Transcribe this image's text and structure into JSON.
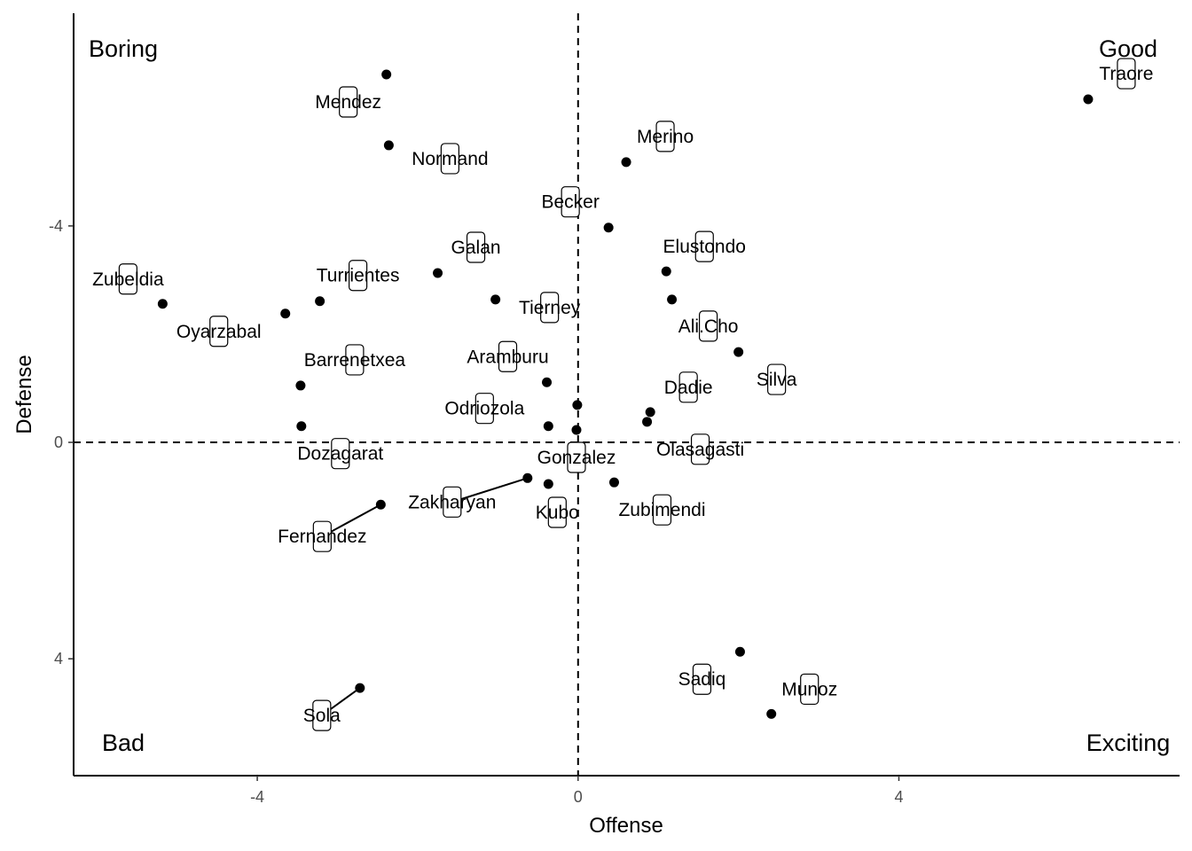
{
  "chart_data": {
    "type": "scatter",
    "xlabel": "Offense",
    "ylabel": "Defense",
    "xlim": [
      -6.29,
      7.5
    ],
    "ylim": [
      -7.93,
      6.16
    ],
    "y_reversed": true,
    "x_ticks": [
      -4,
      0,
      4
    ],
    "y_ticks": [
      -4,
      0,
      4
    ],
    "x_tick_labels": [
      "-4",
      "0",
      "4"
    ],
    "y_tick_labels": [
      "-4",
      "0",
      "4"
    ],
    "grid": false,
    "reference_lines": {
      "x": 0,
      "y": 0,
      "style": "dashed"
    },
    "quadrant_labels": {
      "top_left": "Boring",
      "top_right": "Good",
      "bottom_left": "Bad",
      "bottom_right": "Exciting"
    },
    "points": [
      {
        "name": "Mendez",
        "x": -2.39,
        "y": -6.8
      },
      {
        "name": "Normand",
        "x": -2.36,
        "y": -5.49
      },
      {
        "name": "Merino",
        "x": 0.6,
        "y": -5.18
      },
      {
        "name": "Traore",
        "x": 6.36,
        "y": -6.34
      },
      {
        "name": "Becker",
        "x": 0.38,
        "y": -3.97
      },
      {
        "name": "Galan",
        "x": -1.75,
        "y": -3.13
      },
      {
        "name": "Elustondo",
        "x": 1.1,
        "y": -3.16
      },
      {
        "name": "Tierney",
        "x": -1.03,
        "y": -2.64
      },
      {
        "name": "Ali.Cho",
        "x": 1.17,
        "y": -2.64
      },
      {
        "name": "Turrientes",
        "x": -3.22,
        "y": -2.61
      },
      {
        "name": "Zubeldia",
        "x": -5.18,
        "y": -2.56
      },
      {
        "name": "Oyarzabal",
        "x": -3.65,
        "y": -2.38
      },
      {
        "name": "Silva",
        "x": 2.0,
        "y": -1.67
      },
      {
        "name": "Barrenetxea",
        "x": -3.46,
        "y": -1.05
      },
      {
        "name": "Aramburu",
        "x": -0.39,
        "y": -1.11
      },
      {
        "name": "",
        "x": -0.01,
        "y": -0.69
      },
      {
        "name": "Odriozola",
        "x": -0.37,
        "y": -0.3
      },
      {
        "name": "Gonzalez",
        "x": -0.02,
        "y": -0.23
      },
      {
        "name": "Dozagarat",
        "x": -3.45,
        "y": -0.3
      },
      {
        "name": "Dadie",
        "x": 0.9,
        "y": -0.56
      },
      {
        "name": "Olasagasti",
        "x": 0.86,
        "y": -0.38
      },
      {
        "name": "Zakharyan",
        "x": -0.63,
        "y": 0.66
      },
      {
        "name": "Kubo",
        "x": -0.37,
        "y": 0.77
      },
      {
        "name": "Zubimendi",
        "x": 0.45,
        "y": 0.74
      },
      {
        "name": "Fernandez",
        "x": -2.46,
        "y": 1.15
      },
      {
        "name": "Sola",
        "x": -2.72,
        "y": 4.54
      },
      {
        "name": "Sadiq",
        "x": 2.02,
        "y": 3.87
      },
      {
        "name": "Munoz",
        "x": 2.41,
        "y": 5.02
      }
    ]
  }
}
